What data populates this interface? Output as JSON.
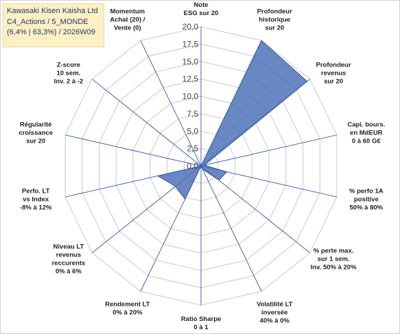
{
  "title_box": {
    "line1": "Kawasaki Kisen Kaisha Ltd",
    "line2": "C4_Actions / 5_MONDE",
    "line3": "(6,4% | 63,3%) / 2026W09"
  },
  "chart_data": {
    "type": "radar",
    "rmax": 20,
    "rings": [
      0,
      2.5,
      5,
      7.5,
      10,
      12.5,
      15,
      17.5,
      20
    ],
    "ring_labels": [
      "0,0",
      "2,5",
      "5,0",
      "7,5",
      "10,0",
      "12,5",
      "15,0",
      "17,5",
      "20,0"
    ],
    "axes": [
      {
        "label": [
          "Note",
          "ESG sur 20"
        ],
        "value": 0
      },
      {
        "label": [
          "Profondeur",
          "historique",
          "sur 20"
        ],
        "value": 20
      },
      {
        "label": [
          "Profondeur",
          "revenus",
          "sur 20"
        ],
        "value": 19.5
      },
      {
        "label": [
          "Capi. bours.",
          "en MdEUR",
          "0 à 60 G€"
        ],
        "value": 0.5
      },
      {
        "label": [
          "% perfo 1A",
          "positive",
          "50% à 80%"
        ],
        "value": 3.8
      },
      {
        "label": [
          "% perte max.",
          "sur 1 sem.",
          "Inv. 50% à 20%"
        ],
        "value": 3.3
      },
      {
        "label": [
          "Volatilité LT",
          "inversée",
          "40% à 0%"
        ],
        "value": 0.5
      },
      {
        "label": [
          "Ratio Sharpe",
          "0 à 1"
        ],
        "value": 0
      },
      {
        "label": [
          "Rendement LT",
          "0% à 20%"
        ],
        "value": 5.3
      },
      {
        "label": [
          "Niveau LT",
          "revenus",
          "reccurents",
          "0% à 6%"
        ],
        "value": 4.7
      },
      {
        "label": [
          "Perfo. LT",
          "vs Index",
          "-8% à 12%"
        ],
        "value": 6.4
      },
      {
        "label": [
          "Régularité",
          "croissance",
          "sur 20"
        ],
        "value": 0
      },
      {
        "label": [
          "Z-score",
          "10 sem.",
          "Inv. 2 à -2"
        ],
        "value": 0
      },
      {
        "label": [
          "Momentum",
          "Achat (20) /",
          "Vente (0)"
        ],
        "value": 0
      }
    ],
    "colors": {
      "fill": "#4e72b8",
      "stroke": "#3a5c9a",
      "grid": "#c8c8c8",
      "spoke": "#3f66b5"
    }
  }
}
